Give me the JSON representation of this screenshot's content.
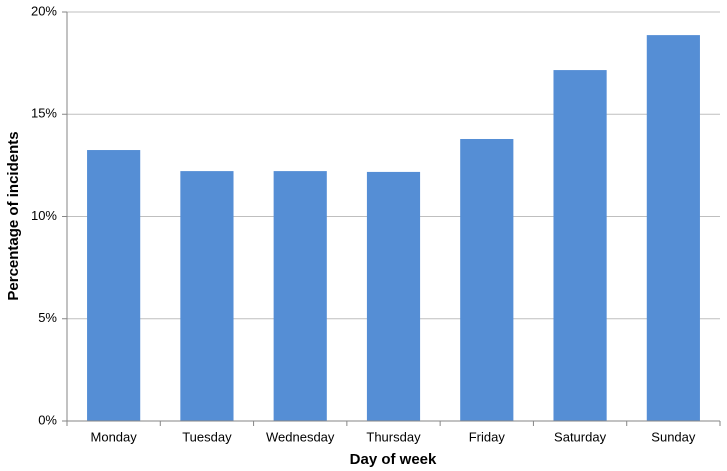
{
  "chart_data": {
    "type": "bar",
    "x_label": "Day of week",
    "y_label": "Percentage of incidents",
    "categories": [
      "Monday",
      "Tuesday",
      "Wednesday",
      "Thursday",
      "Friday",
      "Saturday",
      "Sunday"
    ],
    "values": [
      13.25,
      12.22,
      12.22,
      12.18,
      13.79,
      17.16,
      18.87
    ],
    "color": "#558ed5",
    "ylim": [
      0,
      20
    ],
    "yticks": [
      {
        "value": 0,
        "label": "0%"
      },
      {
        "value": 5,
        "label": "5%"
      },
      {
        "value": 10,
        "label": "10%"
      },
      {
        "value": 15,
        "label": "15%"
      },
      {
        "value": 20,
        "label": "20%"
      }
    ],
    "grid": true
  }
}
